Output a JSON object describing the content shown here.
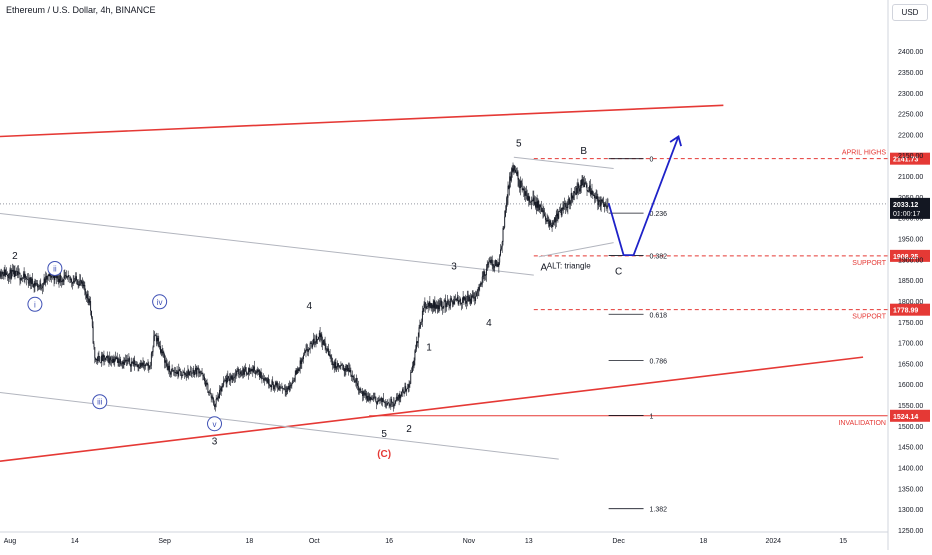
{
  "header": {
    "title": "Ethereum / U.S. Dollar, 4h, BINANCE"
  },
  "currency_button": {
    "label": "USD"
  },
  "colors": {
    "candle": "#131722",
    "channel": "#e53935",
    "gray_channel": "#b2b5be",
    "projection": "#1e22c8",
    "wave_circle": "#3f51b5",
    "level_tag_red": "#e53935",
    "current_price_tag": "#131722"
  },
  "chart_data": {
    "type": "candlestick",
    "ylim": [
      1245,
      2470
    ],
    "xlim": [
      "2023-07-30",
      "2024-01-24"
    ],
    "y_axis": {
      "side": "right",
      "unit": "USD",
      "ticks": [
        "2400.00",
        "2350.00",
        "2300.00",
        "2250.00",
        "2200.00",
        "2150.00",
        "2100.00",
        "2050.00",
        "2000.00",
        "1950.00",
        "1900.00",
        "1850.00",
        "1800.00",
        "1750.00",
        "1700.00",
        "1650.00",
        "1600.00",
        "1550.00",
        "1500.00",
        "1450.00",
        "1400.00",
        "1350.00",
        "1300.00",
        "1250.00"
      ]
    },
    "x_axis": {
      "ticks": [
        {
          "label": "Aug",
          "date": "2023-08-01"
        },
        {
          "label": "14",
          "date": "2023-08-14"
        },
        {
          "label": "Sep",
          "date": "2023-09-01"
        },
        {
          "label": "18",
          "date": "2023-09-18"
        },
        {
          "label": "Oct",
          "date": "2023-10-01"
        },
        {
          "label": "16",
          "date": "2023-10-16"
        },
        {
          "label": "Nov",
          "date": "2023-11-01"
        },
        {
          "label": "13",
          "date": "2023-11-13"
        },
        {
          "label": "Dec",
          "date": "2023-12-01"
        },
        {
          "label": "18",
          "date": "2023-12-18"
        },
        {
          "label": "2024",
          "date": "2024-01-01"
        },
        {
          "label": "15",
          "date": "2024-01-15"
        }
      ]
    },
    "price_path": [
      [
        "2023-07-30",
        1870
      ],
      [
        "2023-08-03",
        1860
      ],
      [
        "2023-08-07",
        1835
      ],
      [
        "2023-08-09",
        1862
      ],
      [
        "2023-08-12",
        1852
      ],
      [
        "2023-08-15",
        1848
      ],
      [
        "2023-08-17",
        1800
      ],
      [
        "2023-08-18",
        1660
      ],
      [
        "2023-08-22",
        1660
      ],
      [
        "2023-08-26",
        1650
      ],
      [
        "2023-08-29",
        1640
      ],
      [
        "2023-08-30",
        1720
      ],
      [
        "2023-09-02",
        1630
      ],
      [
        "2023-09-05",
        1625
      ],
      [
        "2023-09-08",
        1635
      ],
      [
        "2023-09-11",
        1550
      ],
      [
        "2023-09-13",
        1605
      ],
      [
        "2023-09-16",
        1630
      ],
      [
        "2023-09-19",
        1635
      ],
      [
        "2023-09-23",
        1595
      ],
      [
        "2023-09-26",
        1590
      ],
      [
        "2023-09-29",
        1670
      ],
      [
        "2023-10-02",
        1720
      ],
      [
        "2023-10-05",
        1645
      ],
      [
        "2023-10-08",
        1635
      ],
      [
        "2023-10-11",
        1570
      ],
      [
        "2023-10-14",
        1560
      ],
      [
        "2023-10-17",
        1555
      ],
      [
        "2023-10-20",
        1600
      ],
      [
        "2023-10-23",
        1790
      ],
      [
        "2023-10-26",
        1790
      ],
      [
        "2023-10-30",
        1800
      ],
      [
        "2023-11-02",
        1805
      ],
      [
        "2023-11-05",
        1890
      ],
      [
        "2023-11-07",
        1890
      ],
      [
        "2023-11-09",
        2080
      ],
      [
        "2023-11-10",
        2120
      ],
      [
        "2023-11-12",
        2055
      ],
      [
        "2023-11-15",
        2030
      ],
      [
        "2023-11-17",
        1980
      ],
      [
        "2023-11-20",
        2020
      ],
      [
        "2023-11-22",
        2060
      ],
      [
        "2023-11-24",
        2085
      ],
      [
        "2023-11-26",
        2060
      ],
      [
        "2023-11-27",
        2035
      ],
      [
        "2023-11-29",
        2033
      ]
    ],
    "candle_seed": 11,
    "current_price": {
      "value": "2033.12",
      "countdown": "01:00:17"
    },
    "levels": [
      {
        "label": "APRIL HIGHS",
        "value": "2141.73",
        "price": 2141.73,
        "style": "dashed",
        "color": "#e53935"
      },
      {
        "label": "SUPPORT",
        "value": "1908.25",
        "price": 1908.25,
        "style": "dashed",
        "color": "#e53935"
      },
      {
        "label": "SUPPORT",
        "value": "1778.99",
        "price": 1778.99,
        "style": "dashed",
        "color": "#e53935"
      },
      {
        "label": "INVALIDATION",
        "value": "1524.14",
        "price": 1524.14,
        "style": "solid",
        "color": "#e53935"
      }
    ],
    "fib": [
      {
        "label": "0",
        "price": 2141.73
      },
      {
        "label": "0.236",
        "price": 2011.0
      },
      {
        "label": "0.382",
        "price": 1909.0
      },
      {
        "label": "0.618",
        "price": 1768.0
      },
      {
        "label": "0.786",
        "price": 1657.0
      },
      {
        "label": "1",
        "price": 1525.0
      },
      {
        "label": "1.382",
        "price": 1301.0
      }
    ],
    "trendlines": [
      {
        "name": "upper-red",
        "color": "#e53935",
        "from": [
          "2023-07-30",
          2195
        ],
        "to": [
          "2023-12-22",
          2270
        ]
      },
      {
        "name": "lower-red",
        "color": "#e53935",
        "from": [
          "2023-07-30",
          1415
        ],
        "to": [
          "2024-01-19",
          1665
        ]
      },
      {
        "name": "upper-gray",
        "color": "#b2b5be",
        "from": [
          "2023-07-30",
          2010
        ],
        "to": [
          "2023-11-14",
          1862
        ]
      },
      {
        "name": "lower-gray",
        "color": "#b2b5be",
        "from": [
          "2023-07-30",
          1580
        ],
        "to": [
          "2023-11-19",
          1420
        ]
      },
      {
        "name": "triangle-top",
        "color": "#b2b5be",
        "from": [
          "2023-11-10",
          2145
        ],
        "to": [
          "2023-11-30",
          2118
        ]
      },
      {
        "name": "triangle-bottom",
        "color": "#b2b5be",
        "from": [
          "2023-11-15",
          1906
        ],
        "to": [
          "2023-11-30",
          1940
        ]
      }
    ],
    "projection": [
      [
        "2023-11-29",
        2035
      ],
      [
        "2023-12-02",
        1910
      ],
      [
        "2023-12-04",
        1910
      ],
      [
        "2023-12-13",
        2195
      ]
    ],
    "wave_labels": [
      {
        "text": "2",
        "at": [
          "2023-08-02",
          1910
        ],
        "style": "plain"
      },
      {
        "text": "i",
        "at": [
          "2023-08-06",
          1792
        ],
        "style": "circle"
      },
      {
        "text": "ii",
        "at": [
          "2023-08-10",
          1878
        ],
        "style": "circle"
      },
      {
        "text": "iii",
        "at": [
          "2023-08-19",
          1558
        ],
        "style": "circle"
      },
      {
        "text": "iv",
        "at": [
          "2023-08-31",
          1798
        ],
        "style": "circle"
      },
      {
        "text": "v",
        "at": [
          "2023-09-11",
          1505
        ],
        "style": "circle"
      },
      {
        "text": "3",
        "at": [
          "2023-09-11",
          1465
        ],
        "style": "plain"
      },
      {
        "text": "4",
        "at": [
          "2023-09-30",
          1790
        ],
        "style": "plain"
      },
      {
        "text": "1",
        "at": [
          "2023-10-24",
          1690
        ],
        "style": "plain"
      },
      {
        "text": "5",
        "at": [
          "2023-10-15",
          1483
        ],
        "style": "plain"
      },
      {
        "text": "2",
        "at": [
          "2023-10-20",
          1495
        ],
        "style": "plain"
      },
      {
        "text": "(C)",
        "at": [
          "2023-10-15",
          1435
        ],
        "style": "red"
      },
      {
        "text": "3",
        "at": [
          "2023-10-29",
          1885
        ],
        "style": "plain"
      },
      {
        "text": "4",
        "at": [
          "2023-11-05",
          1750
        ],
        "style": "plain"
      },
      {
        "text": "5",
        "at": [
          "2023-11-11",
          2180
        ],
        "style": "plain"
      },
      {
        "text": "B",
        "at": [
          "2023-11-24",
          2163
        ],
        "style": "plain"
      },
      {
        "text": "A",
        "at": [
          "2023-11-16",
          1883
        ],
        "style": "plain"
      },
      {
        "text": "ALT: triangle",
        "at": [
          "2023-11-21",
          1885
        ],
        "style": "note"
      },
      {
        "text": "C",
        "at": [
          "2023-12-01",
          1873
        ],
        "style": "plain"
      }
    ]
  }
}
